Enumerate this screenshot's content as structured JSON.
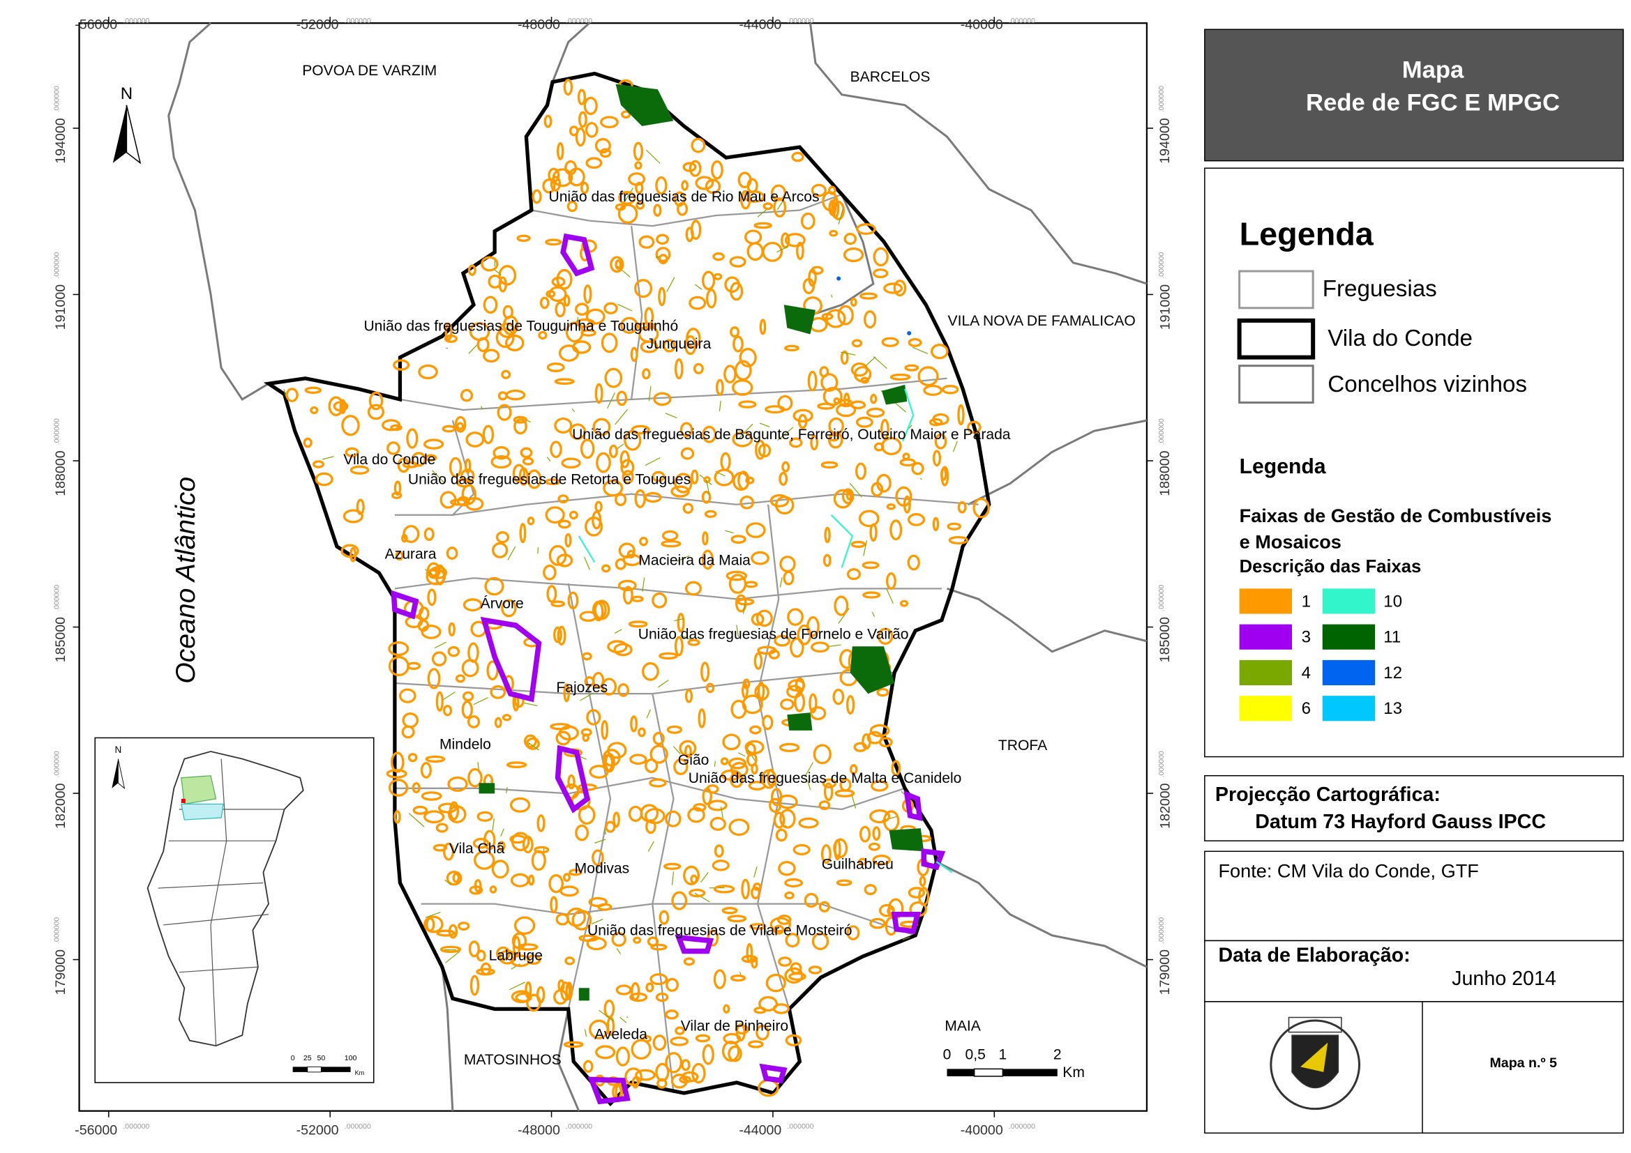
{
  "map": {
    "x_ticks": [
      "-56000",
      "-52000",
      "-48000",
      "-44000",
      "-40000"
    ],
    "y_ticks": [
      "194000",
      "191000",
      "188000",
      "185000",
      "182000",
      "179000"
    ],
    "tick_decimals": ".000000",
    "neighbors": [
      "POVOA DE VARZIM",
      "BARCELOS",
      "VILA NOVA DE FAMALICAO",
      "TROFA",
      "MAIA",
      "MATOSINHOS"
    ],
    "ocean": "Oceano Atlântico",
    "parishes": [
      "União das freguesias de Rio Mau e Arcos",
      "União das freguesias de Touguinha e Touguinhó",
      "Junqueira",
      "União das freguesias de Bagunte, Ferreiró, Outeiro Maior e Parada",
      "Vila do Conde",
      "União das freguesias de Retorta e Tougues",
      "Azurara",
      "Macieira da Maia",
      "Árvore",
      "União das freguesias de Fornelo e Vairão",
      "Fajozes",
      "Mindelo",
      "Gião",
      "União das freguesias de Malta e Canidelo",
      "Vila Chã",
      "Modivas",
      "Guilhabreu",
      "União das freguesias de Vilar e Mosteiró",
      "Labruge",
      "Aveleda",
      "Vilar de Pinheiro"
    ],
    "north": "N",
    "scale": {
      "labels": [
        "0",
        "0,5",
        "1",
        "2"
      ],
      "unit": "Km"
    },
    "inset": {
      "north": "N",
      "scale": [
        "0",
        "25",
        "50",
        "100"
      ],
      "unit": "Km"
    }
  },
  "title": [
    "Mapa",
    "Rede de FGC E MPGC"
  ],
  "legend1": {
    "title": "Legenda",
    "items": [
      "Freguesias",
      "Vila do Conde",
      "Concelhos vizinhos"
    ]
  },
  "legend2": {
    "title": "Legenda",
    "subtitle": [
      "Faixas de Gestão de Combustíveis",
      "e Mosaicos"
    ],
    "heading": "Descrição das Faixas",
    "items": [
      {
        "label": "1",
        "color": "#ff9900"
      },
      {
        "label": "3",
        "color": "#a000f0"
      },
      {
        "label": "4",
        "color": "#7aa800"
      },
      {
        "label": "6",
        "color": "#ffff00"
      },
      {
        "label": "10",
        "color": "#33f5cc"
      },
      {
        "label": "11",
        "color": "#006400"
      },
      {
        "label": "12",
        "color": "#0064f0"
      },
      {
        "label": "13",
        "color": "#00c8ff"
      }
    ]
  },
  "projection": {
    "label": "Projecção Cartográfica:",
    "value": "Datum 73 Hayford Gauss IPCC"
  },
  "source": "Fonte: CM Vila do Conde, GTF",
  "date": {
    "label": "Data de Elaboração:",
    "value": "Junho 2014"
  },
  "map_number": "Mapa n.º 5"
}
